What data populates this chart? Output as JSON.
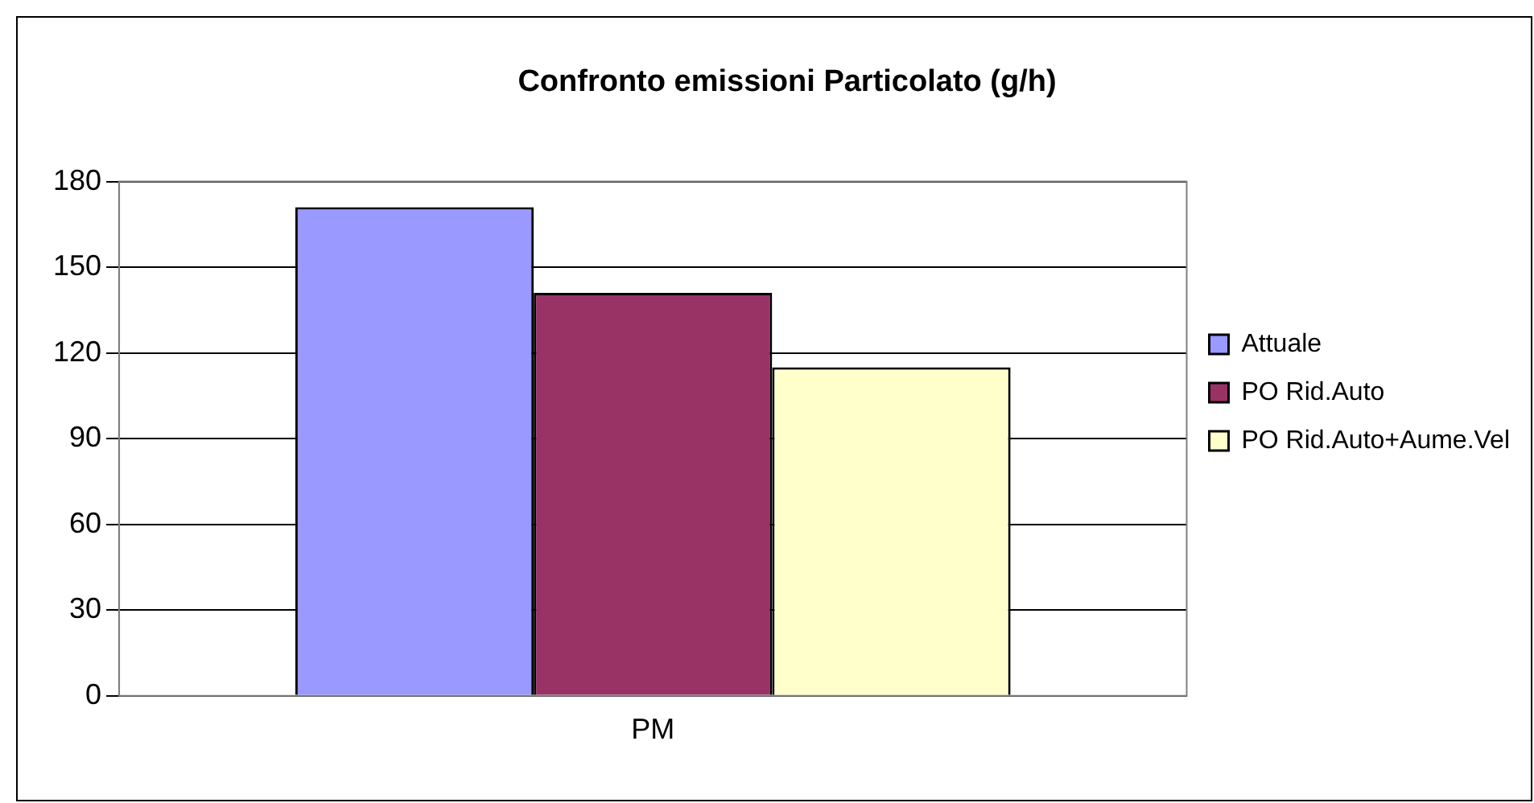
{
  "chart_data": {
    "type": "bar",
    "title": "Confronto emissioni Particolato (g/h)",
    "categories": [
      "PM"
    ],
    "series": [
      {
        "name": "Attuale",
        "color": "#9999ff",
        "values": [
          171
        ]
      },
      {
        "name": "PO Rid.Auto",
        "color": "#993366",
        "values": [
          141
        ]
      },
      {
        "name": "PO Rid.Auto+Aume.Vel",
        "color": "#ffffcc",
        "values": [
          115
        ]
      }
    ],
    "ylim": [
      0,
      180
    ],
    "yticks": [
      0,
      30,
      60,
      90,
      120,
      150,
      180
    ],
    "grid": "y",
    "legend": "right"
  }
}
